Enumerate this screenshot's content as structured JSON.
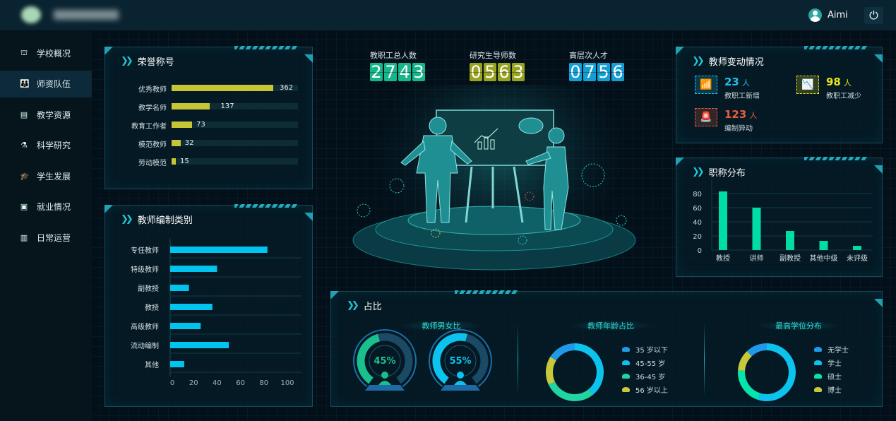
{
  "header": {
    "user": "Aimi",
    "icons": {
      "user": "user-icon",
      "power": "power-icon"
    }
  },
  "sidebar": {
    "items": [
      {
        "label": "学校概况",
        "icon": "school-icon"
      },
      {
        "label": "师资队伍",
        "icon": "people-icon",
        "active": true
      },
      {
        "label": "教学资源",
        "icon": "book-icon"
      },
      {
        "label": "科学研究",
        "icon": "microscope-icon"
      },
      {
        "label": "学生发展",
        "icon": "graduation-cap-icon"
      },
      {
        "label": "就业情况",
        "icon": "briefcase-icon"
      },
      {
        "label": "日常运营",
        "icon": "bar-chart-icon"
      }
    ]
  },
  "honors": {
    "title": "荣誉称号",
    "items": [
      {
        "label": "优秀教师",
        "value": 362
      },
      {
        "label": "教学名师",
        "value": 137
      },
      {
        "label": "教育工作者",
        "value": 73
      },
      {
        "label": "模范教师",
        "value": 32
      },
      {
        "label": "劳动模范",
        "value": 15
      }
    ]
  },
  "stats": [
    {
      "label": "教职工总人数",
      "value": "2743",
      "color": "#17b58a"
    },
    {
      "label": "研究生导师数",
      "value": "0563",
      "color": "#98a320"
    },
    {
      "label": "高层次人才",
      "value": "0756",
      "color": "#159ed6"
    }
  ],
  "changes": {
    "title": "教师变动情况",
    "items": [
      {
        "value": "23",
        "unit": "人",
        "label": "教职工新增",
        "color": "#1ec0e8",
        "icon": "trend-up-icon"
      },
      {
        "value": "98",
        "unit": "人",
        "label": "教职工减少",
        "color": "#e4e31e",
        "icon": "trend-down-icon"
      },
      {
        "value": "123",
        "unit": "人",
        "label": "编制异动",
        "color": "#ef5a3f",
        "icon": "alarm-icon"
      }
    ]
  },
  "chart_data": [
    {
      "type": "bar",
      "orientation": "horizontal",
      "title": "教师编制类别",
      "categories": [
        "专任教师",
        "特级教师",
        "副教授",
        "教授",
        "高级教师",
        "流动编制",
        "其他"
      ],
      "values": [
        83,
        40,
        16,
        36,
        26,
        50,
        12
      ],
      "xlim": [
        0,
        100
      ],
      "xticks": [
        0,
        20,
        40,
        60,
        80,
        100
      ],
      "color": "#00c4ee",
      "grid": true
    },
    {
      "type": "bar",
      "title": "职称分布",
      "categories": [
        "教授",
        "讲师",
        "副教授",
        "其他中级",
        "未评级"
      ],
      "values": [
        83,
        60,
        27,
        13,
        6
      ],
      "ylim": [
        0,
        90
      ],
      "yticks": [
        0,
        20,
        40,
        60,
        80
      ],
      "color": "#00dca6",
      "grid": true
    },
    {
      "type": "gauge",
      "title": "教师男女比",
      "series": [
        {
          "value": 45,
          "label": "45%",
          "color": "#19c08e",
          "icon": "female-icon"
        },
        {
          "value": 55,
          "label": "55%",
          "color": "#0cc3f0",
          "icon": "male-icon"
        }
      ]
    },
    {
      "type": "pie",
      "donut": true,
      "title": "教师年龄占比",
      "legend_position": "right",
      "slices": [
        {
          "name": "35 岁以下",
          "value": 16,
          "color": "#1e9ae8"
        },
        {
          "name": "45-55 岁",
          "value": 39,
          "color": "#0cc3ee"
        },
        {
          "name": "36-45 岁",
          "value": 29,
          "color": "#21d5a3"
        },
        {
          "name": "56 岁以上",
          "value": 16,
          "color": "#c7c93a"
        }
      ]
    },
    {
      "type": "pie",
      "donut": true,
      "title": "最高学位分布",
      "legend_position": "right",
      "slices": [
        {
          "name": "无学士",
          "value": 12,
          "color": "#1e9ae8"
        },
        {
          "name": "学士",
          "value": 55,
          "color": "#0cc3ee"
        },
        {
          "name": "硕士",
          "value": 21,
          "color": "#04e4ad"
        },
        {
          "name": "博士",
          "value": 12,
          "color": "#c7c93a"
        }
      ]
    }
  ],
  "ratio": {
    "title": "占比"
  }
}
